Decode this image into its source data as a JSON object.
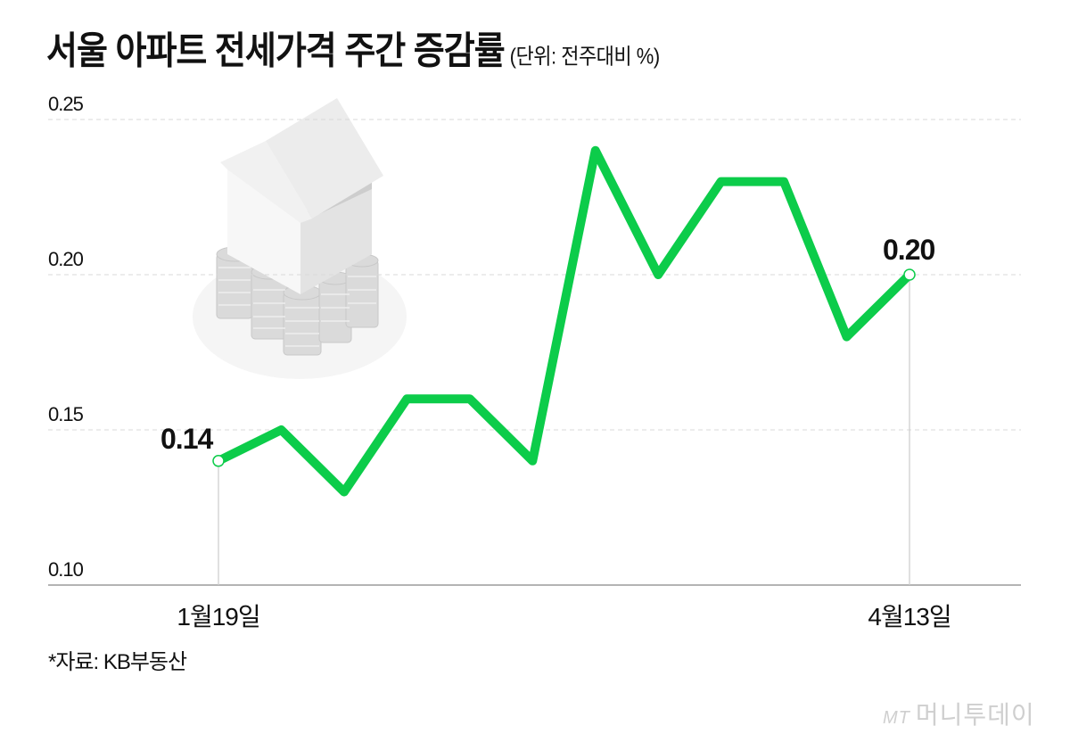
{
  "header": {
    "title": "서울 아파트 전세가격 주간 증감률",
    "unit": "(단위: 전주대비 %)"
  },
  "footer": {
    "source": "*자료: KB부동산",
    "logo_mt": "MT",
    "logo_text": "머니투데이"
  },
  "colors": {
    "line": "#0ccc4a",
    "grid": "#d9d9d9",
    "axis": "#888888"
  },
  "annotations": {
    "first": "0.14",
    "last": "0.20"
  },
  "y_ticks": [
    "0.25",
    "0.20",
    "0.15",
    "0.10"
  ],
  "x_labels": [
    "1월19일",
    "4월13일"
  ],
  "chart_data": {
    "type": "line",
    "title": "서울 아파트 전세가격 주간 증감률",
    "subtitle": "(단위: 전주대비 %)",
    "xlabel": "",
    "ylabel": "전주대비 %",
    "ylim": [
      0.1,
      0.25
    ],
    "yticks": [
      0.1,
      0.15,
      0.2,
      0.25
    ],
    "grid": true,
    "x_tick_labels": [
      "1월19일",
      "4월13일"
    ],
    "series": [
      {
        "name": "서울 아파트 전세가격 주간 증감률",
        "values": [
          0.14,
          0.15,
          0.13,
          0.16,
          0.16,
          0.14,
          0.24,
          0.2,
          0.23,
          0.23,
          0.18,
          0.2
        ]
      }
    ],
    "annotations": [
      {
        "index": 0,
        "label": "0.14"
      },
      {
        "index": 11,
        "label": "0.20"
      }
    ],
    "source": "*자료: KB부동산"
  }
}
